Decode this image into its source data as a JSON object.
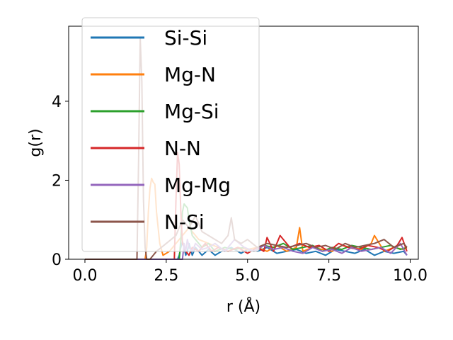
{
  "chart_data": {
    "type": "line",
    "title": "",
    "xlabel": "r (Å)",
    "ylabel": "g(r)",
    "xlim": [
      -0.5,
      10.25
    ],
    "ylim": [
      0,
      5.9
    ],
    "xticks": [
      0.0,
      2.5,
      5.0,
      7.5,
      10.0
    ],
    "xtick_labels": [
      "0.0",
      "2.5",
      "5.0",
      "7.5",
      "10.0"
    ],
    "yticks": [
      0,
      2,
      4
    ],
    "ytick_labels": [
      "0",
      "2",
      "4"
    ],
    "grid": false,
    "legend_position": "top-left",
    "series": [
      {
        "name": "Si-Si",
        "color": "#1f77b4",
        "x": [
          0.0,
          2.85,
          2.9,
          2.95,
          3.0,
          3.05,
          3.1,
          3.15,
          3.2,
          3.3,
          3.4,
          3.5,
          3.6,
          3.8,
          4.0,
          4.2,
          4.5,
          4.8,
          5.0,
          5.3,
          5.6,
          5.9,
          6.2,
          6.5,
          6.8,
          7.1,
          7.4,
          7.7,
          8.0,
          8.3,
          8.6,
          8.9,
          9.2,
          9.5,
          9.8,
          9.9
        ],
        "y": [
          0,
          0,
          0.1,
          0.3,
          0.45,
          0.3,
          0.1,
          0.2,
          0.4,
          0.1,
          0.3,
          0.2,
          0.1,
          0.25,
          0.1,
          0.2,
          0.3,
          0.15,
          0.25,
          0.2,
          0.3,
          0.15,
          0.2,
          0.25,
          0.15,
          0.2,
          0.1,
          0.25,
          0.2,
          0.15,
          0.25,
          0.1,
          0.2,
          0.15,
          0.2,
          0.1
        ]
      },
      {
        "name": "Mg-N",
        "color": "#ff7f0e",
        "x": [
          0.0,
          1.85,
          1.9,
          1.95,
          2.0,
          2.05,
          2.1,
          2.15,
          2.2,
          2.3,
          2.4,
          2.6,
          2.8,
          3.0,
          3.2,
          3.5,
          3.8,
          4.1,
          4.4,
          4.7,
          5.0,
          5.3,
          5.6,
          5.9,
          6.2,
          6.5,
          6.6,
          6.7,
          7.0,
          7.3,
          7.6,
          7.9,
          8.2,
          8.5,
          8.8,
          8.9,
          9.2,
          9.5,
          9.8,
          9.9
        ],
        "y": [
          0,
          0,
          0.3,
          1.2,
          1.8,
          2.05,
          1.95,
          1.9,
          1.2,
          0.4,
          0.1,
          0.2,
          0.4,
          0.6,
          0.8,
          0.5,
          0.4,
          0.3,
          0.2,
          0.3,
          0.25,
          0.3,
          0.2,
          0.35,
          0.2,
          0.3,
          0.8,
          0.2,
          0.3,
          0.25,
          0.2,
          0.35,
          0.3,
          0.25,
          0.4,
          0.6,
          0.2,
          0.3,
          0.25,
          0.3
        ]
      },
      {
        "name": "Mg-Si",
        "color": "#2ca02c",
        "x": [
          0.0,
          2.9,
          2.95,
          3.0,
          3.05,
          3.1,
          3.15,
          3.2,
          3.3,
          3.4,
          3.6,
          3.8,
          4.0,
          4.3,
          4.6,
          4.9,
          5.2,
          5.5,
          5.8,
          6.1,
          6.4,
          6.7,
          7.0,
          7.3,
          7.6,
          7.9,
          8.2,
          8.5,
          8.8,
          9.1,
          9.4,
          9.7,
          9.9
        ],
        "y": [
          0,
          0,
          0.5,
          1.2,
          1.4,
          1.35,
          1.3,
          1.0,
          0.6,
          0.5,
          0.3,
          0.4,
          0.2,
          0.3,
          0.25,
          0.3,
          0.2,
          0.35,
          0.3,
          0.4,
          0.25,
          0.3,
          0.35,
          0.2,
          0.3,
          0.25,
          0.35,
          0.3,
          0.25,
          0.3,
          0.35,
          0.25,
          0.3
        ]
      },
      {
        "name": "N-N",
        "color": "#d62728",
        "x": [
          0.0,
          2.75,
          2.8,
          2.85,
          2.9,
          2.95,
          3.0,
          3.1,
          3.2,
          3.3,
          3.5,
          3.7,
          3.9,
          4.1,
          4.4,
          4.7,
          5.0,
          5.3,
          5.5,
          5.6,
          5.8,
          6.0,
          6.3,
          6.6,
          6.9,
          7.2,
          7.5,
          7.8,
          8.1,
          8.4,
          8.7,
          9.0,
          9.3,
          9.6,
          9.75,
          9.9
        ],
        "y": [
          0,
          0,
          1.5,
          2.7,
          2.4,
          1.2,
          0.4,
          0.2,
          0.1,
          0.3,
          0.2,
          0.4,
          0.2,
          0.3,
          0.2,
          0.3,
          0.15,
          0.3,
          0.2,
          0.55,
          0.2,
          0.6,
          0.3,
          0.4,
          0.3,
          0.35,
          0.2,
          0.4,
          0.3,
          0.25,
          0.35,
          0.3,
          0.2,
          0.35,
          0.55,
          0.2
        ]
      },
      {
        "name": "Mg-Mg",
        "color": "#9467bd",
        "x": [
          0.0,
          3.0,
          3.05,
          3.1,
          3.15,
          3.2,
          3.3,
          3.4,
          3.6,
          3.8,
          4.0,
          4.3,
          4.6,
          4.9,
          5.2,
          5.5,
          5.8,
          6.1,
          6.4,
          6.7,
          7.0,
          7.3,
          7.6,
          7.9,
          8.2,
          8.5,
          8.8,
          9.1,
          9.4,
          9.7,
          9.9
        ],
        "y": [
          0,
          0,
          0.4,
          0.2,
          0.5,
          0.3,
          0.2,
          0.4,
          0.25,
          0.3,
          0.4,
          0.2,
          0.5,
          0.3,
          0.2,
          0.35,
          0.25,
          0.3,
          0.2,
          0.15,
          0.3,
          0.2,
          0.25,
          0.15,
          0.3,
          0.2,
          0.25,
          0.3,
          0.15,
          0.4,
          0.1
        ]
      },
      {
        "name": "N-Si",
        "color": "#8c564b",
        "x": [
          0.0,
          1.6,
          1.65,
          1.7,
          1.75,
          1.8,
          1.85,
          1.9,
          2.0,
          2.2,
          2.5,
          2.8,
          3.0,
          3.2,
          3.4,
          3.6,
          3.8,
          4.0,
          4.2,
          4.4,
          4.5,
          4.6,
          4.8,
          5.0,
          5.3,
          5.6,
          5.9,
          6.2,
          6.5,
          6.8,
          7.1,
          7.4,
          7.7,
          8.0,
          8.3,
          8.6,
          8.9,
          9.2,
          9.5,
          9.8,
          9.9
        ],
        "y": [
          0,
          0,
          2.5,
          5.6,
          4.5,
          1.5,
          0.3,
          0.0,
          0.0,
          0.2,
          0.4,
          0.6,
          1.0,
          0.8,
          1.1,
          0.7,
          0.6,
          0.5,
          0.4,
          0.6,
          1.05,
          0.5,
          0.4,
          0.5,
          0.3,
          0.4,
          0.35,
          0.3,
          0.35,
          0.4,
          0.3,
          0.35,
          0.25,
          0.4,
          0.3,
          0.35,
          0.4,
          0.5,
          0.3,
          0.4,
          0.3
        ]
      }
    ]
  }
}
